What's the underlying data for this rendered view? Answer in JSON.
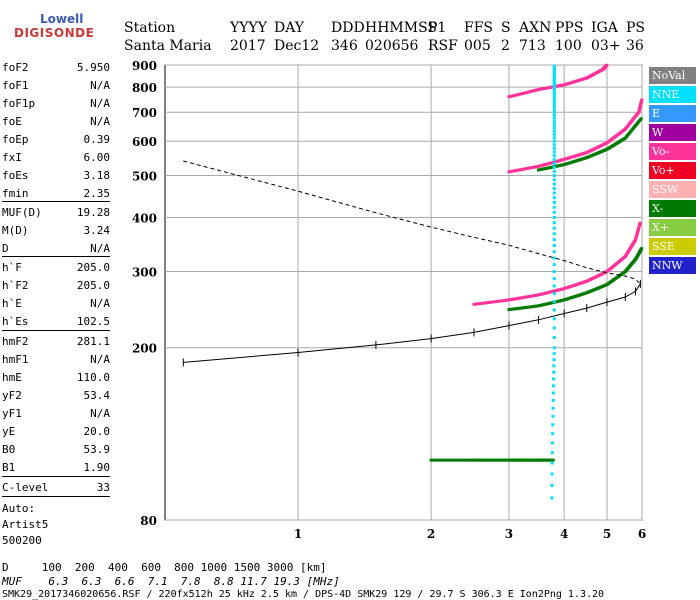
{
  "logo": {
    "line1": "Lowell",
    "line2": "DIGISONDE"
  },
  "header": {
    "labels": [
      "Station",
      "YYYY",
      "DAY",
      "DDD",
      "HHMMSS",
      "P1",
      "FFS",
      "S",
      "AXN",
      "PPS",
      "IGA",
      "PS"
    ],
    "values": [
      "Santa Maria",
      "2017",
      "Dec12",
      "346",
      "020656",
      "RSF",
      "005",
      "2",
      "713",
      "100",
      "03+",
      "36"
    ]
  },
  "params": [
    {
      "k": "foF2",
      "v": "5.950"
    },
    {
      "k": "foF1",
      "v": "N/A"
    },
    {
      "k": "foF1p",
      "v": "N/A"
    },
    {
      "k": "foE",
      "v": "N/A"
    },
    {
      "k": "foEp",
      "v": "0.39"
    },
    {
      "k": "fxI",
      "v": "6.00"
    },
    {
      "k": "foEs",
      "v": "3.18"
    },
    {
      "k": "fmin",
      "v": "2.35"
    },
    {
      "k": "MUF(D)",
      "v": "19.28"
    },
    {
      "k": "M(D)",
      "v": "3.24"
    },
    {
      "k": "D",
      "v": "N/A"
    },
    {
      "k": "h`F",
      "v": "205.0"
    },
    {
      "k": "h`F2",
      "v": "205.0"
    },
    {
      "k": "h`E",
      "v": "N/A"
    },
    {
      "k": "h`Es",
      "v": "102.5"
    },
    {
      "k": "hmF2",
      "v": "281.1"
    },
    {
      "k": "hmF1",
      "v": "N/A"
    },
    {
      "k": "hmE",
      "v": "110.0"
    },
    {
      "k": "yF2",
      "v": "53.4"
    },
    {
      "k": "yF1",
      "v": "N/A"
    },
    {
      "k": "yE",
      "v": "20.0"
    },
    {
      "k": "B0",
      "v": "53.9"
    },
    {
      "k": "B1",
      "v": "1.90"
    },
    {
      "k": "C-level",
      "v": "33"
    }
  ],
  "auto": {
    "line1": "Auto:",
    "line2": "Artist5",
    "line3": "500200"
  },
  "footer": {
    "d_row": "D     100  200  400  600  800 1000 1500 3000 [km]",
    "muf_row": "MUF    6.3  6.3  6.6  7.1  7.8  8.8 11.7 19.3 [MHz]",
    "info": "SMK29_2017346020656.RSF / 220fx512h 25 kHz 2.5 km / DPS-4D SMK29 129 / 29.7 S 306.3 E Ion2Png 1.3.20"
  },
  "legend": [
    {
      "label": "NoVal",
      "color": "#808080"
    },
    {
      "label": "NNE",
      "color": "#00e0ff"
    },
    {
      "label": "E",
      "color": "#3399ff"
    },
    {
      "label": "W",
      "color": "#a000a0"
    },
    {
      "label": "Vo-",
      "color": "#ff3399"
    },
    {
      "label": "Vo+",
      "color": "#ee0022"
    },
    {
      "label": "SSW",
      "color": "#ffb0b0"
    },
    {
      "label": "X-",
      "color": "#007a00"
    },
    {
      "label": "X+",
      "color": "#88cc44"
    },
    {
      "label": "SSE",
      "color": "#cccc00"
    },
    {
      "label": "NNW",
      "color": "#2222cc"
    }
  ],
  "chart_data": {
    "type": "scatter",
    "title": "",
    "xlabel": "",
    "ylabel": "",
    "xlim": [
      0.5,
      6
    ],
    "ylim": [
      80,
      900
    ],
    "x_scale": "log",
    "y_scale": "log",
    "x_ticks": [
      1,
      2,
      3,
      4,
      5,
      6
    ],
    "y_ticks": [
      80,
      200,
      300,
      400,
      500,
      600,
      700,
      800,
      900
    ],
    "grid": true,
    "legend_position": "right",
    "series": [
      {
        "name": "Vo-",
        "color": "#ff3399",
        "points": [
          [
            2.5,
            252
          ],
          [
            3,
            258
          ],
          [
            3.5,
            265
          ],
          [
            4,
            274
          ],
          [
            4.5,
            285
          ],
          [
            5,
            300
          ],
          [
            5.5,
            325
          ],
          [
            5.8,
            355
          ],
          [
            5.95,
            390
          ]
        ]
      },
      {
        "name": "X-",
        "color": "#007a00",
        "points": [
          [
            3,
            245
          ],
          [
            3.5,
            250
          ],
          [
            4,
            258
          ],
          [
            4.5,
            268
          ],
          [
            5,
            280
          ],
          [
            5.5,
            300
          ],
          [
            5.8,
            320
          ],
          [
            6,
            340
          ]
        ]
      },
      {
        "name": "Vo- (multi-hop 2)",
        "color": "#ff3399",
        "points": [
          [
            3,
            510
          ],
          [
            3.5,
            525
          ],
          [
            4,
            545
          ],
          [
            4.5,
            565
          ],
          [
            5,
            595
          ],
          [
            5.5,
            640
          ],
          [
            5.9,
            700
          ],
          [
            6,
            750
          ]
        ]
      },
      {
        "name": "X- (multi-hop 2)",
        "color": "#007a00",
        "points": [
          [
            3.5,
            515
          ],
          [
            4,
            530
          ],
          [
            4.5,
            550
          ],
          [
            5,
            575
          ],
          [
            5.5,
            610
          ],
          [
            6,
            680
          ]
        ]
      },
      {
        "name": "Vo- (multi-hop 3)",
        "color": "#ff3399",
        "points": [
          [
            3,
            760
          ],
          [
            3.5,
            790
          ],
          [
            4,
            810
          ],
          [
            4.5,
            840
          ],
          [
            4.9,
            880
          ],
          [
            5,
            900
          ]
        ]
      },
      {
        "name": "Es",
        "color": "#007a00",
        "points": [
          [
            2,
            110
          ],
          [
            2.5,
            110
          ],
          [
            3,
            110
          ],
          [
            3.4,
            110
          ],
          [
            3.8,
            110
          ]
        ]
      },
      {
        "name": "fmin trace",
        "color": "#00e0ff",
        "points": [
          [
            3.75,
            90
          ],
          [
            3.8,
            200
          ],
          [
            3.8,
            400
          ],
          [
            3.8,
            600
          ],
          [
            3.8,
            800
          ],
          [
            3.8,
            900
          ]
        ]
      }
    ],
    "profile": [
      [
        0.55,
        540
      ],
      [
        1,
        460
      ],
      [
        1.5,
        410
      ],
      [
        2,
        380
      ],
      [
        2.5,
        360
      ],
      [
        3,
        345
      ],
      [
        3.5,
        330
      ],
      [
        4,
        318
      ],
      [
        4.5,
        306
      ],
      [
        5,
        298
      ],
      [
        5.5,
        293
      ],
      [
        5.8,
        288
      ],
      [
        5.95,
        281
      ],
      [
        5.8,
        270
      ],
      [
        5.5,
        262
      ],
      [
        5,
        255
      ],
      [
        4.5,
        247
      ],
      [
        4,
        240
      ],
      [
        3.5,
        232
      ],
      [
        3,
        225
      ],
      [
        2.5,
        217
      ],
      [
        2,
        210
      ],
      [
        1.5,
        203
      ],
      [
        1,
        195
      ],
      [
        0.55,
        185
      ]
    ]
  }
}
